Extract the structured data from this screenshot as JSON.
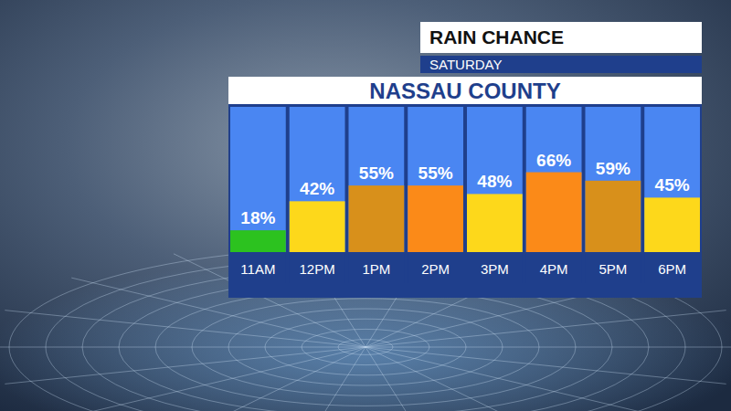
{
  "chart_data": {
    "type": "bar",
    "supertitle": "RAIN CHANCE",
    "subtitle": "SATURDAY",
    "title": "NASSAU COUNTY",
    "categories": [
      "11AM",
      "12PM",
      "1PM",
      "2PM",
      "3PM",
      "4PM",
      "5PM",
      "6PM"
    ],
    "values": [
      18,
      42,
      55,
      55,
      48,
      66,
      59,
      45
    ],
    "value_labels": [
      "18%",
      "42%",
      "55%",
      "55%",
      "48%",
      "66%",
      "59%",
      "45%"
    ],
    "colors": [
      "#2cc21f",
      "#fdd81b",
      "#d8901b",
      "#fb8a18",
      "#fdd81b",
      "#fb8a18",
      "#d8901b",
      "#fdd81b"
    ],
    "ylim": [
      0,
      120
    ],
    "tick_labels": false,
    "grid": false,
    "data_labels": true
  }
}
